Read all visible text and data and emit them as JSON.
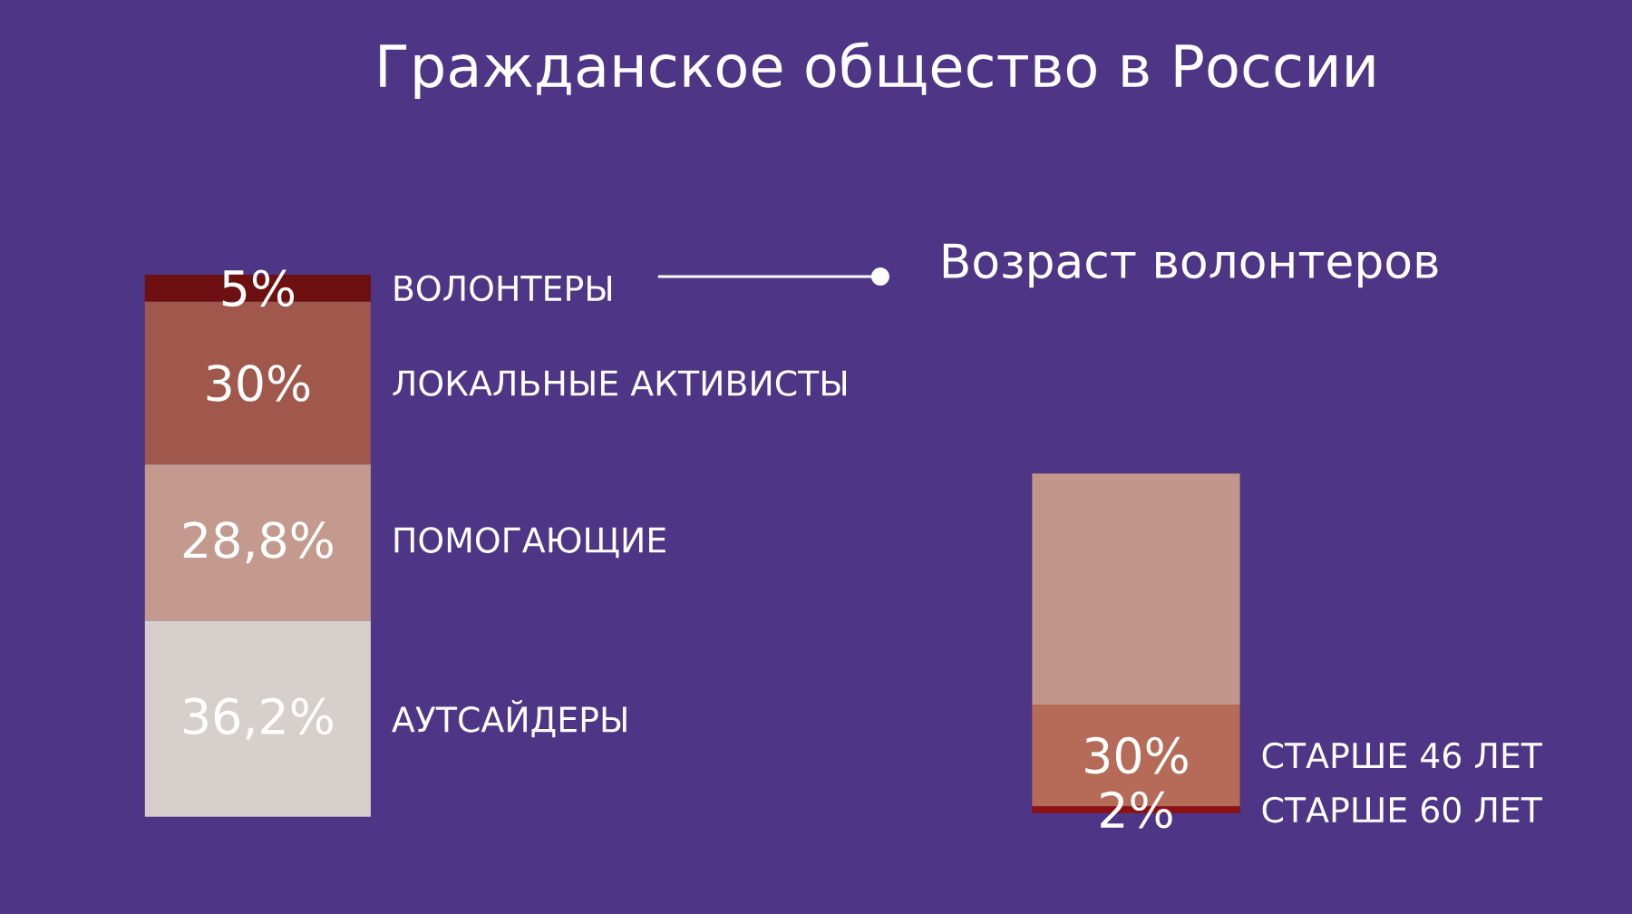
{
  "chart_data": [
    {
      "type": "bar",
      "title": "Гражданское общество в России",
      "stacked": true,
      "categories": [
        null
      ],
      "series": [
        {
          "name": "АУТСАЙДЕРЫ",
          "color": "#d6cfcc",
          "values": [
            36.2
          ],
          "value_labels": [
            "36,2%"
          ]
        },
        {
          "name": "ПОМОГАЮЩИЕ",
          "color": "#c39a8d",
          "values": [
            28.8
          ],
          "value_labels": [
            "28,8%"
          ]
        },
        {
          "name": "ЛОКАЛЬНЫЕ АКТИВИСТЫ",
          "color": "#a0584c",
          "values": [
            30
          ],
          "value_labels": [
            "30%"
          ]
        },
        {
          "name": "ВОЛОНТЕРЫ",
          "color": "#6e0f12",
          "values": [
            5
          ],
          "value_labels": [
            "5%"
          ]
        }
      ]
    },
    {
      "type": "bar",
      "title": "Возраст волонтеров",
      "stacked": true,
      "categories": [
        null
      ],
      "series": [
        {
          "name": "СТАРШЕ 60 ЛЕТ",
          "color": "#8e1010",
          "values": [
            2
          ],
          "value_labels": [
            "2%"
          ]
        },
        {
          "name": "СТАРШЕ 46 ЛЕТ",
          "color": "#b66a58",
          "values": [
            30
          ],
          "value_labels": [
            "30%"
          ]
        },
        {
          "color": "#c2978a",
          "values": [
            68
          ],
          "value_labels": [
            null
          ]
        }
      ]
    }
  ]
}
